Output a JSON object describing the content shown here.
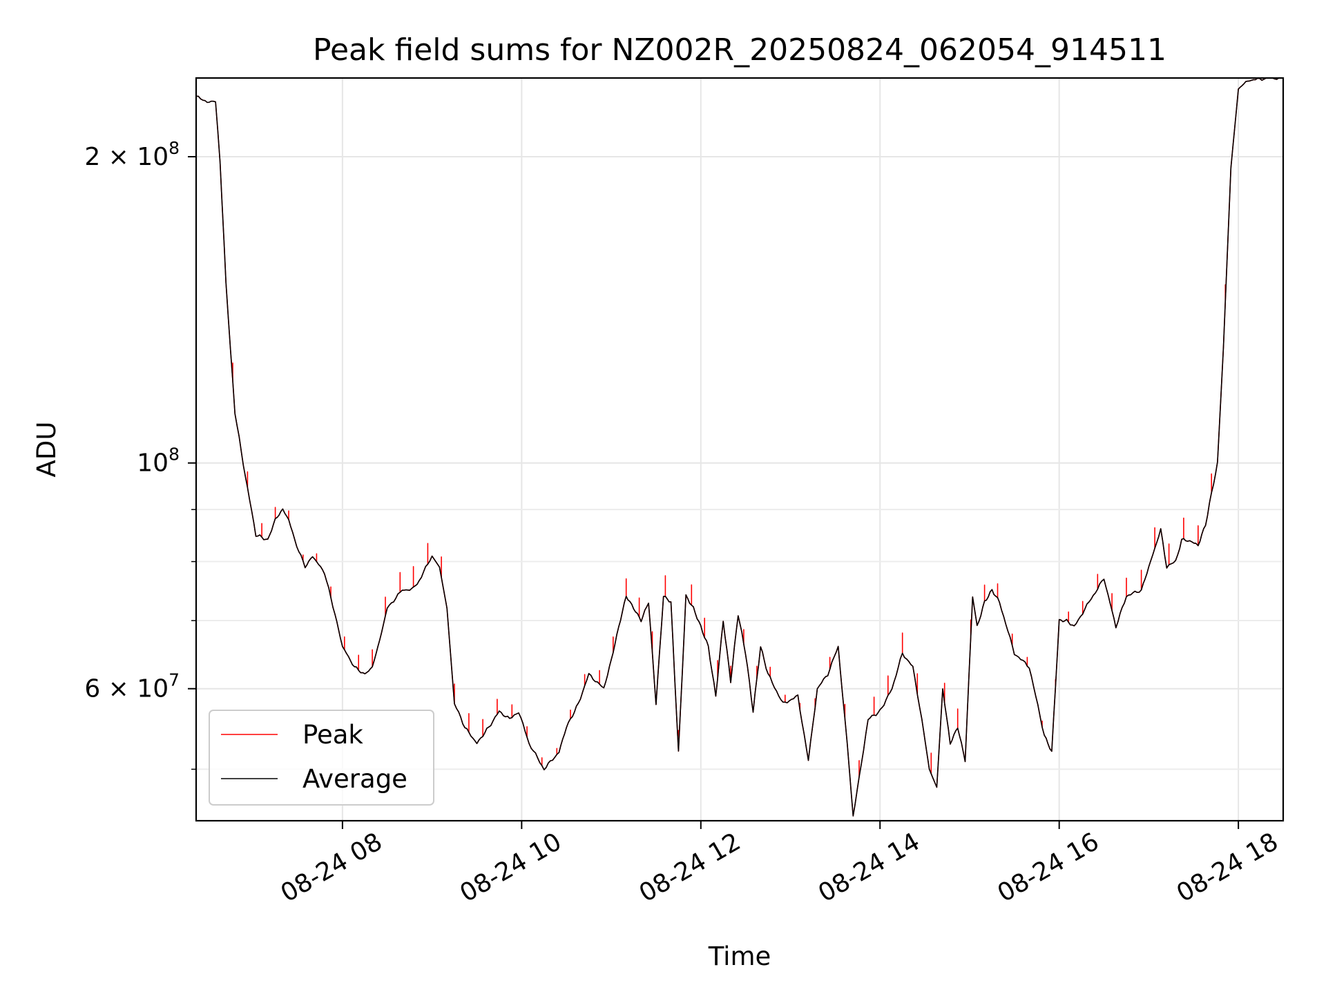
{
  "chart_data": {
    "type": "line",
    "title": "Peak field sums for NZ002R_20250824_062054_914511",
    "xlabel": "Time",
    "ylabel": "ADU",
    "yscale": "log",
    "xlim": [
      "2025-08-24 06:22",
      "2025-08-24 18:30"
    ],
    "ylim": [
      44500000,
      239000000
    ],
    "grid": true,
    "legend_position": "lower-left",
    "x_ticks": [
      {
        "value": "2025-08-24 08:00",
        "label": "08-24 08"
      },
      {
        "value": "2025-08-24 10:00",
        "label": "08-24 10"
      },
      {
        "value": "2025-08-24 12:00",
        "label": "08-24 12"
      },
      {
        "value": "2025-08-24 14:00",
        "label": "08-24 14"
      },
      {
        "value": "2025-08-24 16:00",
        "label": "08-24 16"
      },
      {
        "value": "2025-08-24 18:00",
        "label": "08-24 18"
      }
    ],
    "y_major_ticks": [
      {
        "value": 60000000,
        "mantissa": "6",
        "exponent": "7"
      },
      {
        "value": 100000000,
        "mantissa": "",
        "exponent": "8"
      },
      {
        "value": 200000000,
        "mantissa": "2",
        "exponent": "8"
      }
    ],
    "y_minor_ticks": [
      50000000,
      70000000,
      80000000,
      90000000
    ],
    "series": [
      {
        "name": "Average",
        "color": "#000000",
        "x": [
          "06:22",
          "06:28",
          "06:32",
          "06:35",
          "06:38",
          "06:42",
          "06:48",
          "06:55",
          "07:02",
          "07:10",
          "07:15",
          "07:20",
          "07:24",
          "07:28",
          "07:35",
          "07:40",
          "07:48",
          "07:55",
          "08:00",
          "08:08",
          "08:15",
          "08:20",
          "08:25",
          "08:30",
          "08:40",
          "08:45",
          "08:50",
          "09:00",
          "09:05",
          "09:10",
          "09:15",
          "09:22",
          "09:30",
          "09:38",
          "09:45",
          "09:52",
          "09:58",
          "10:05",
          "10:15",
          "10:25",
          "10:30",
          "10:38",
          "10:45",
          "10:55",
          "11:00",
          "11:05",
          "11:10",
          "11:15",
          "11:20",
          "11:25",
          "11:30",
          "11:35",
          "11:40",
          "11:45",
          "11:50",
          "11:55",
          "12:00",
          "12:05",
          "12:10",
          "12:15",
          "12:20",
          "12:25",
          "12:30",
          "12:35",
          "12:40",
          "12:45",
          "12:55",
          "13:05",
          "13:12",
          "13:18",
          "13:25",
          "13:32",
          "13:38",
          "13:42",
          "13:46",
          "13:52",
          "14:00",
          "14:08",
          "14:15",
          "14:22",
          "14:28",
          "14:33",
          "14:38",
          "14:42",
          "14:47",
          "14:52",
          "14:57",
          "15:02",
          "15:05",
          "15:10",
          "15:15",
          "15:20",
          "15:30",
          "15:40",
          "15:50",
          "15:55",
          "16:00",
          "16:05",
          "16:10",
          "16:20",
          "16:30",
          "16:38",
          "16:45",
          "16:55",
          "17:00",
          "17:08",
          "17:12",
          "17:18",
          "17:22",
          "17:26",
          "17:33",
          "17:38",
          "17:46",
          "17:50",
          "17:55",
          "18:00",
          "18:05",
          "18:10",
          "18:20",
          "18:30"
        ],
        "y": [
          229000000,
          227000000,
          226000000,
          227000000,
          198000000,
          150000000,
          112000000,
          97000000,
          85000000,
          84000000,
          88000000,
          90000000,
          88000000,
          84000000,
          79000000,
          81000000,
          78000000,
          71000000,
          66000000,
          63000000,
          62000000,
          63000000,
          67000000,
          72000000,
          75000000,
          75000000,
          76000000,
          81000000,
          79000000,
          72000000,
          58000000,
          55000000,
          53000000,
          55000000,
          57000000,
          56000000,
          57000000,
          53000000,
          50000000,
          52000000,
          55000000,
          58000000,
          62000000,
          60000000,
          64000000,
          69000000,
          74000000,
          72000000,
          70000000,
          73000000,
          58000000,
          74000000,
          73000000,
          52000000,
          74000000,
          72000000,
          69000000,
          66000000,
          59000000,
          70000000,
          61000000,
          71000000,
          65000000,
          57000000,
          66000000,
          62000000,
          58000000,
          59000000,
          51000000,
          60000000,
          62000000,
          66000000,
          53000000,
          45000000,
          49000000,
          56000000,
          57000000,
          60000000,
          65000000,
          63000000,
          56000000,
          50000000,
          48000000,
          60000000,
          53000000,
          55000000,
          51000000,
          74000000,
          69000000,
          73000000,
          75000000,
          73000000,
          65000000,
          63000000,
          54000000,
          52000000,
          70000000,
          70000000,
          69000000,
          73000000,
          77000000,
          69000000,
          74000000,
          75000000,
          79000000,
          86000000,
          79000000,
          80000000,
          84000000,
          84000000,
          83000000,
          87000000,
          100000000,
          130000000,
          195000000,
          233000000,
          237000000,
          238000000,
          239000000,
          239000000
        ]
      },
      {
        "name": "Peak",
        "color": "#ff0000"
      }
    ]
  }
}
